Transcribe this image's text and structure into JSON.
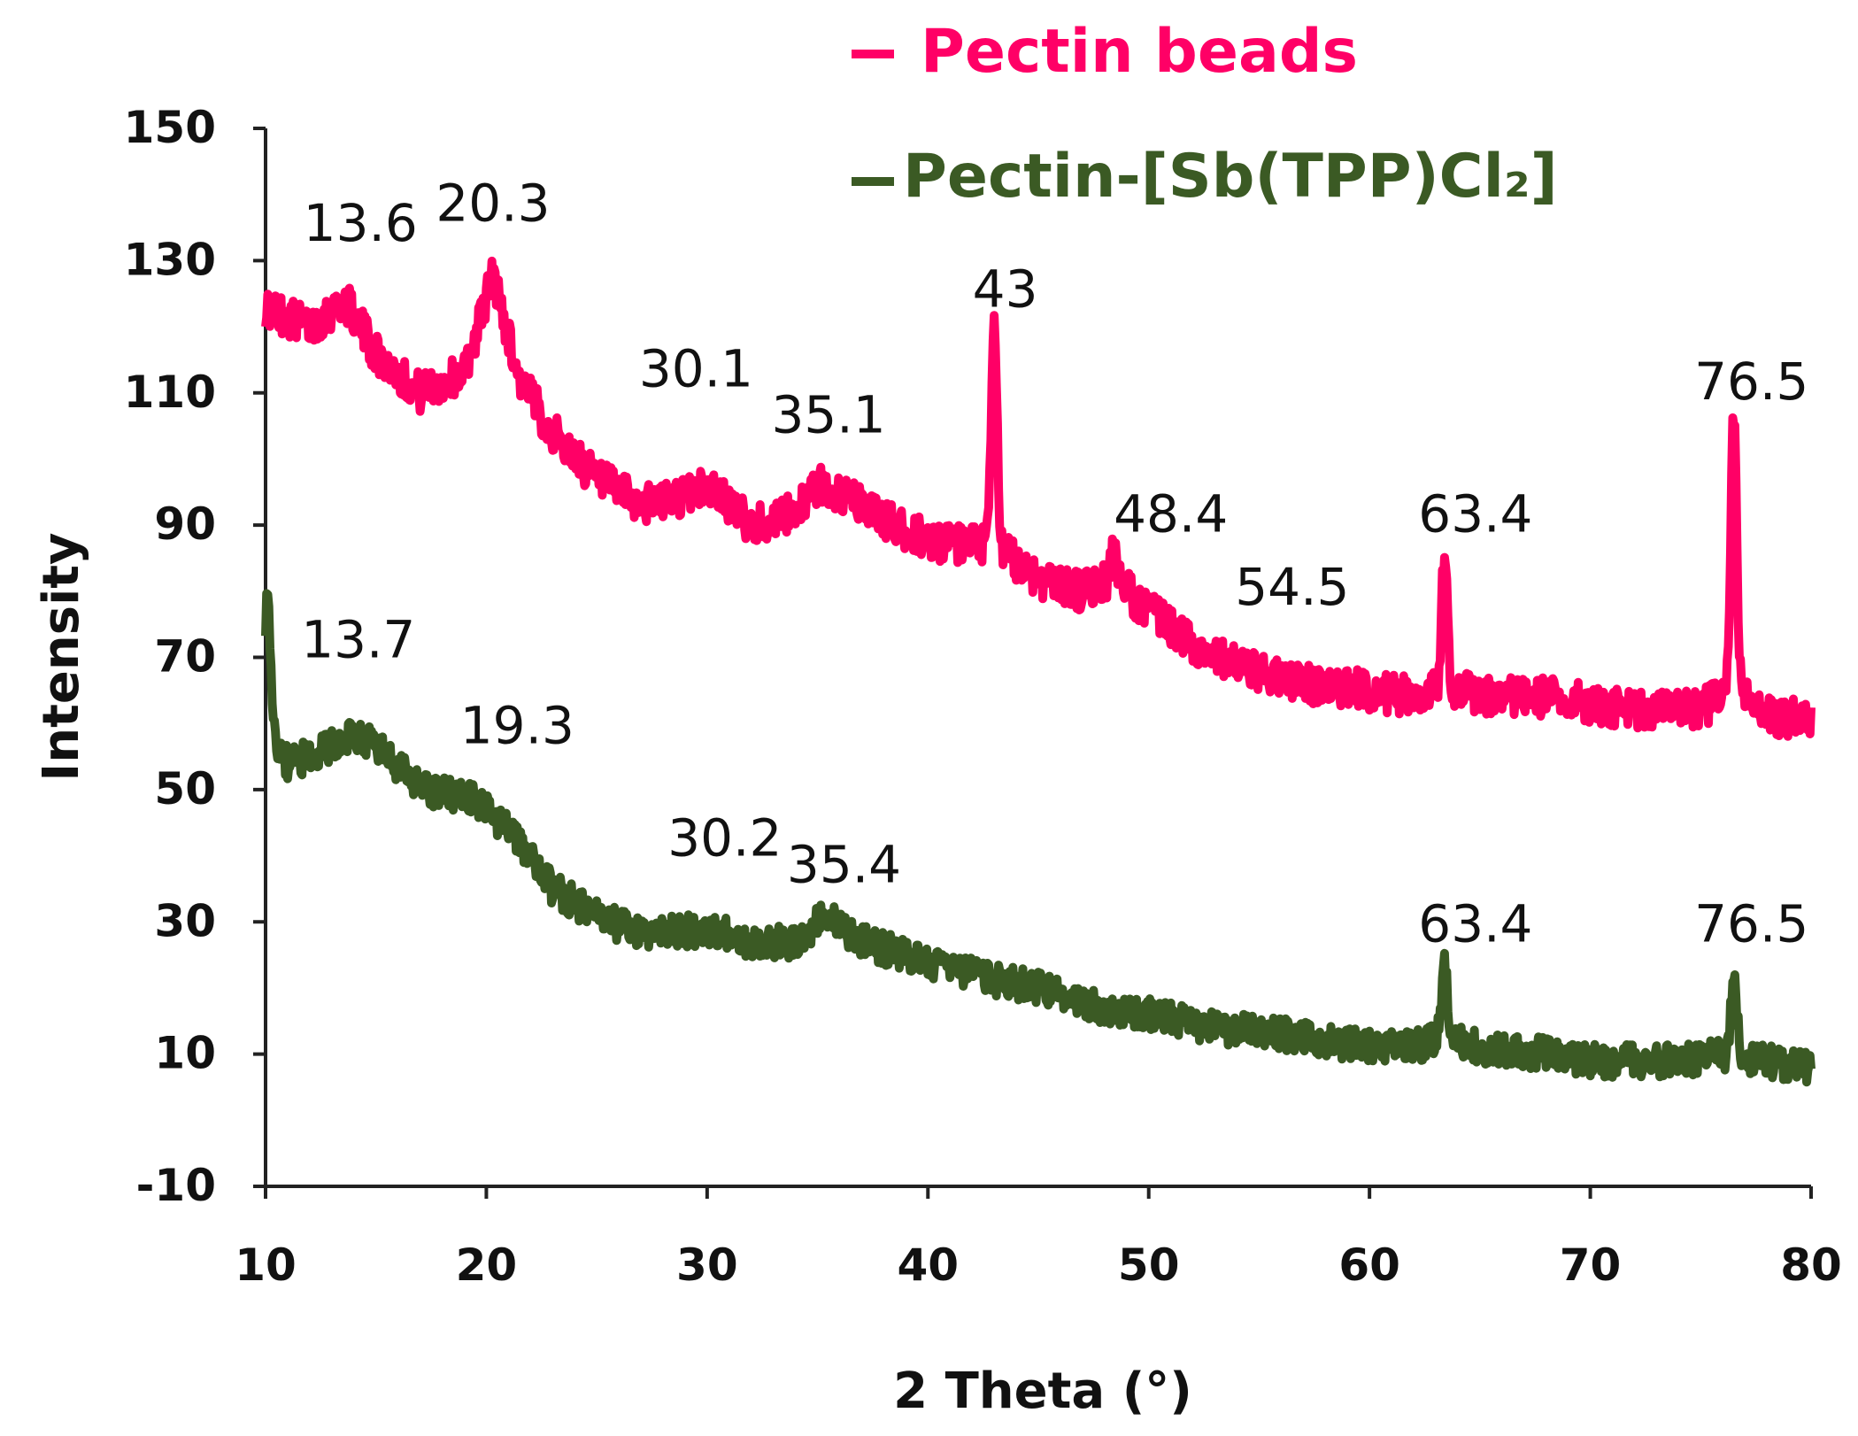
{
  "chart_data": {
    "type": "line",
    "xlabel": "2 Theta (°)",
    "ylabel": "Intensity",
    "xlim": [
      10,
      80
    ],
    "ylim": [
      -10,
      150
    ],
    "xticks": [
      10,
      20,
      30,
      40,
      50,
      60,
      70,
      80
    ],
    "yticks": [
      -10,
      10,
      30,
      50,
      70,
      90,
      110,
      130,
      150
    ],
    "legend_position": "top-right",
    "series": [
      {
        "name": "Pectin beads",
        "color": "#ff0066",
        "x": [
          10,
          12,
          13.6,
          15,
          17,
          19,
          20.3,
          21.5,
          23,
          25,
          27,
          28.5,
          30.1,
          32,
          33.5,
          35.1,
          37,
          39,
          41,
          43,
          45,
          47,
          48.4,
          50,
          52,
          54.5,
          57,
          60,
          62,
          63.4,
          65,
          68,
          70,
          72,
          74,
          75.5,
          76.5,
          77.5,
          78.5,
          80
        ],
        "y": [
          123,
          120,
          124,
          116,
          110,
          113,
          128,
          112,
          104,
          97,
          93,
          94,
          96,
          90,
          91,
          96,
          93,
          89,
          87,
          87,
          82,
          80,
          82,
          77,
          72,
          68,
          66,
          65,
          64,
          66,
          64,
          64,
          63,
          62,
          62,
          63,
          66,
          62,
          61,
          61
        ],
        "peaks": [
          {
            "x": 43,
            "y": 120
          },
          {
            "x": 48.4,
            "y": 86
          },
          {
            "x": 63.4,
            "y": 86
          },
          {
            "x": 76.5,
            "y": 107
          }
        ],
        "noise": 6
      },
      {
        "name": "Pectin-[Sb(TPP)Cl₂]",
        "color": "#3b5a24",
        "x": [
          10,
          10.5,
          11,
          12,
          13.7,
          15,
          17,
          19.3,
          21,
          23,
          25,
          27,
          30.2,
          32,
          34,
          35.4,
          37,
          40,
          42,
          45,
          48,
          50,
          53,
          56,
          60,
          62,
          63.4,
          65,
          68,
          70,
          72,
          74,
          76.5,
          78,
          80
        ],
        "y": [
          63,
          56,
          54,
          55,
          58,
          57,
          50,
          49,
          44,
          35,
          31,
          28,
          29,
          27,
          27,
          31,
          27,
          24,
          22,
          20,
          17,
          16,
          14,
          13,
          11,
          11,
          13,
          11,
          10,
          9,
          9,
          9,
          10,
          9,
          8
        ],
        "peaks": [
          {
            "x": 10.1,
            "y": 78
          },
          {
            "x": 63.4,
            "y": 23
          },
          {
            "x": 76.5,
            "y": 22
          }
        ],
        "noise": 5
      }
    ],
    "annotations": [
      {
        "text": "13.6",
        "x": 14.3,
        "y": 133
      },
      {
        "text": "20.3",
        "x": 20.3,
        "y": 136
      },
      {
        "text": "43",
        "x": 43.5,
        "y": 123
      },
      {
        "text": "30.1",
        "x": 29.5,
        "y": 111
      },
      {
        "text": "35.1",
        "x": 35.5,
        "y": 104
      },
      {
        "text": "76.5",
        "x": 77.3,
        "y": 109
      },
      {
        "text": "48.4",
        "x": 51,
        "y": 89
      },
      {
        "text": "63.4",
        "x": 64.8,
        "y": 89
      },
      {
        "text": "54.5",
        "x": 56.5,
        "y": 78
      },
      {
        "text": "13.7",
        "x": 14.2,
        "y": 70
      },
      {
        "text": "19.3",
        "x": 21.4,
        "y": 57
      },
      {
        "text": "30.2",
        "x": 30.8,
        "y": 40
      },
      {
        "text": "35.4",
        "x": 36.2,
        "y": 36
      },
      {
        "text": "63.4",
        "x": 64.8,
        "y": 27
      },
      {
        "text": "76.5",
        "x": 77.3,
        "y": 27
      }
    ]
  }
}
